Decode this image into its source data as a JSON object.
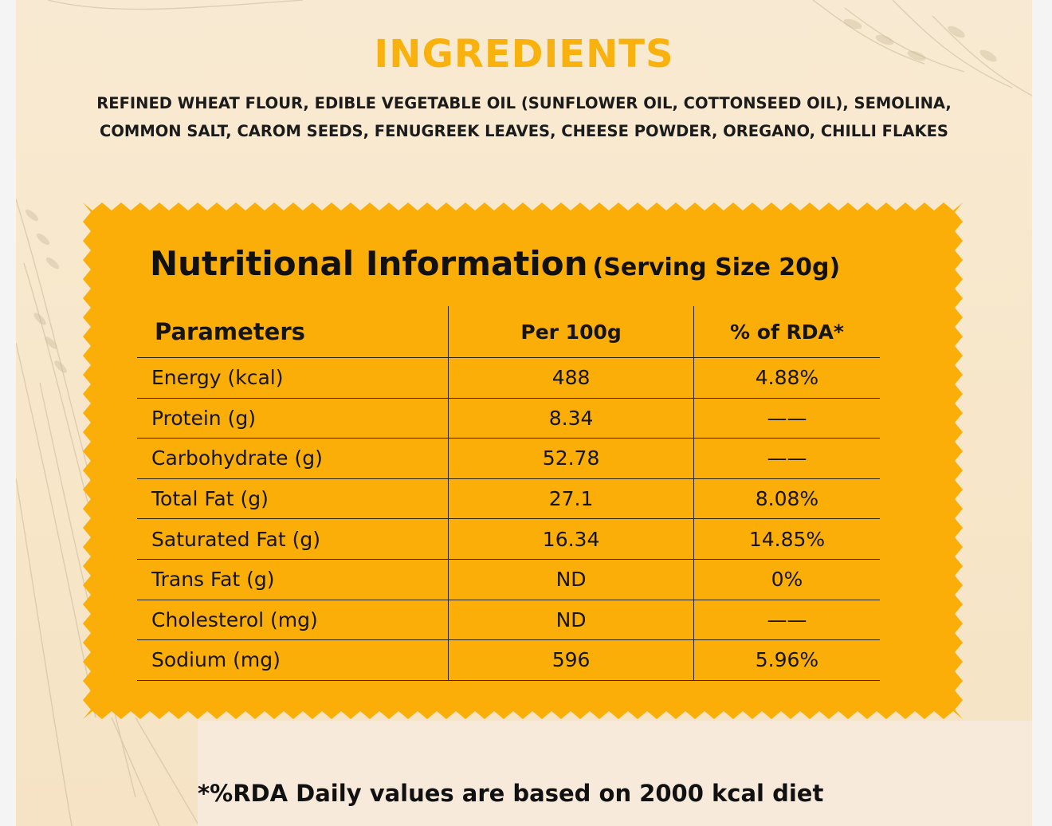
{
  "ingredients": {
    "title": "INGREDIENTS",
    "line1": "REFINED WHEAT FLOUR, EDIBLE VEGETABLE OIL (SUNFLOWER OIL, COTTONSEED OIL), SEMOLINA,",
    "line2": "COMMON SALT, CAROM SEEDS, FENUGREEK LEAVES, CHEESE POWDER, OREGANO, CHILLI FLAKES"
  },
  "nutrition": {
    "title": "Nutritional Information",
    "serving": "(Serving Size 20g)",
    "headers": [
      "Parameters",
      "Per 100g",
      "% of RDA*"
    ],
    "rows": [
      {
        "param": "Energy (kcal)",
        "per100g": "488",
        "rda": "4.88%"
      },
      {
        "param": "Protein (g)",
        "per100g": "8.34",
        "rda": "——"
      },
      {
        "param": "Carbohydrate (g)",
        "per100g": "52.78",
        "rda": "——"
      },
      {
        "param": "Total Fat (g)",
        "per100g": "27.1",
        "rda": "8.08%"
      },
      {
        "param": "Saturated Fat (g)",
        "per100g": "16.34",
        "rda": "14.85%"
      },
      {
        "param": "Trans Fat (g)",
        "per100g": "ND",
        "rda": "0%"
      },
      {
        "param": "Cholesterol (mg)",
        "per100g": "ND",
        "rda": "——"
      },
      {
        "param": "Sodium (mg)",
        "per100g": "596",
        "rda": "5.96%"
      }
    ]
  },
  "footnote": "*%RDA Daily values are based on 2000 kcal diet",
  "colors": {
    "accent": "#f9b10d",
    "panel": "#fbae07",
    "background": "#f7e6c9",
    "text": "#111111"
  }
}
